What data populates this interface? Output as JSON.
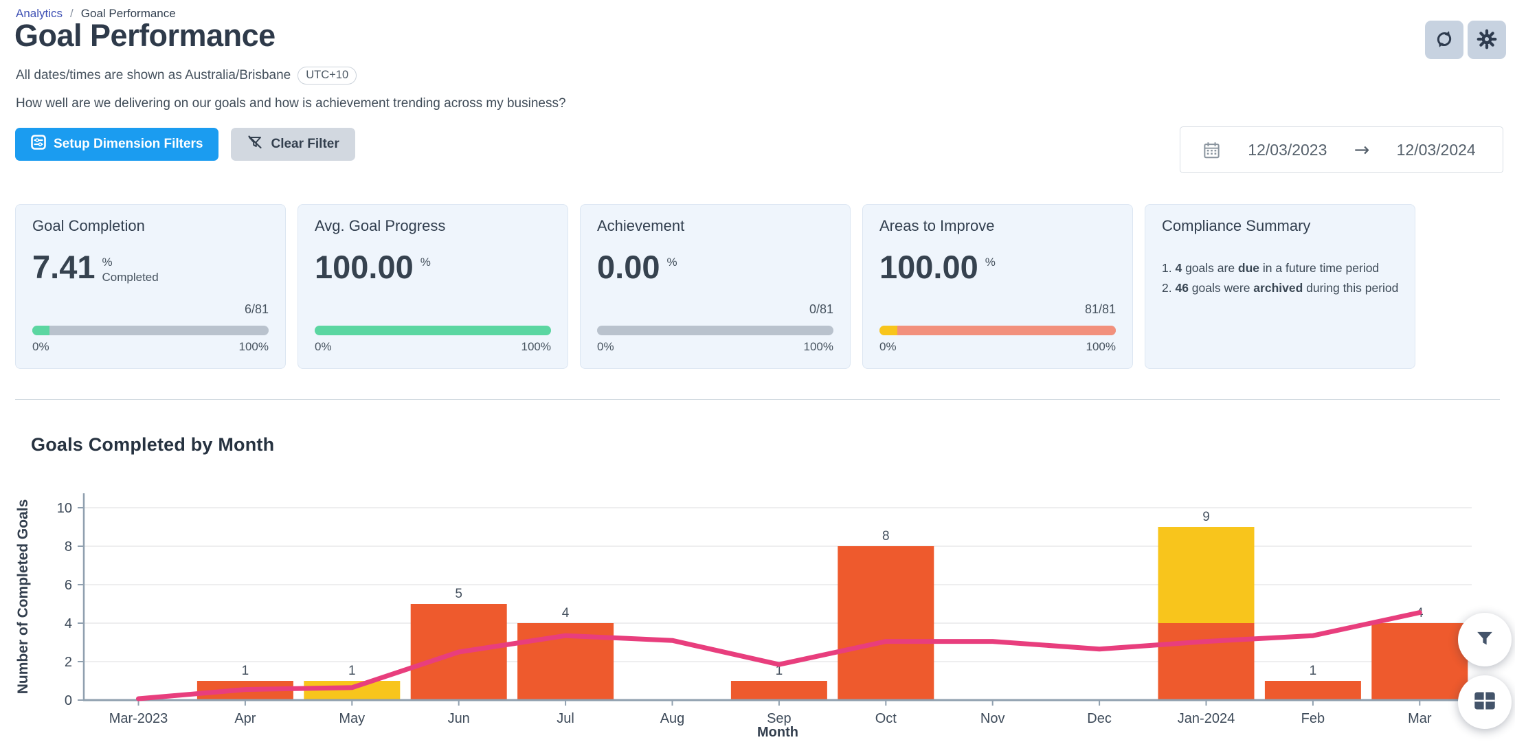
{
  "breadcrumb": {
    "link": "Analytics",
    "separator": "/",
    "current": "Goal Performance"
  },
  "header": {
    "title": "Goal Performance",
    "timezone_note": "All dates/times are shown as Australia/Brisbane",
    "timezone_badge": "UTC+10",
    "description": "How well are we delivering on our goals and how is achievement trending across my business?"
  },
  "toolbar": {
    "setup_filters_label": "Setup Dimension Filters",
    "clear_filter_label": "Clear Filter"
  },
  "top_actions": {
    "refresh_icon": "refresh-icon",
    "settings_icon": "gear-icon"
  },
  "date_range": {
    "icon": "calendar-icon",
    "start": "12/03/2023",
    "arrow": "→",
    "end": "12/03/2024"
  },
  "kpi_cards": [
    {
      "title": "Goal Completion",
      "value": "7.41",
      "unit": "%",
      "unit_sub": "Completed",
      "fraction": "6/81",
      "bar": {
        "track": "#b9c2cd",
        "segments": [
          {
            "color": "#5bd6a1",
            "pct": 7.41
          }
        ]
      },
      "min_label": "0%",
      "max_label": "100%"
    },
    {
      "title": "Avg. Goal Progress",
      "value": "100.00",
      "unit": "%",
      "unit_sub": "",
      "fraction": "",
      "bar": {
        "track": "#b9c2cd",
        "segments": [
          {
            "color": "#5bd6a1",
            "pct": 100
          }
        ]
      },
      "min_label": "0%",
      "max_label": "100%"
    },
    {
      "title": "Achievement",
      "value": "0.00",
      "unit": "%",
      "unit_sub": "",
      "fraction": "0/81",
      "bar": {
        "track": "#b9c2cd",
        "segments": []
      },
      "min_label": "0%",
      "max_label": "100%"
    },
    {
      "title": "Areas to Improve",
      "value": "100.00",
      "unit": "%",
      "unit_sub": "",
      "fraction": "81/81",
      "bar": {
        "track": "#b9c2cd",
        "segments": [
          {
            "color": "#f8c51c",
            "pct": 7.5
          },
          {
            "color": "#f2907c",
            "pct": 92.5
          }
        ]
      },
      "min_label": "0%",
      "max_label": "100%"
    },
    {
      "title": "Compliance Summary",
      "list_items": [
        [
          {
            "t": "1. "
          },
          {
            "t": "4",
            "b": true
          },
          {
            "t": " goals are "
          },
          {
            "t": "due",
            "b": true
          },
          {
            "t": " in a future time period"
          }
        ],
        [
          {
            "t": "2. "
          },
          {
            "t": "46",
            "b": true
          },
          {
            "t": " goals were "
          },
          {
            "t": "archived",
            "b": true
          },
          {
            "t": " during this period"
          }
        ]
      ]
    }
  ],
  "chart_data": {
    "type": "bar",
    "title": "Goals Completed by Month",
    "xlabel": "Month",
    "ylabel": "Number of Completed Goals",
    "ylim": [
      0,
      11
    ],
    "yticks": [
      0,
      2,
      4,
      6,
      8,
      10
    ],
    "grid": true,
    "legend": false,
    "categories": [
      "Mar-2023",
      "Apr",
      "May",
      "Jun",
      "Jul",
      "Aug",
      "Sep",
      "Oct",
      "Nov",
      "Dec",
      "Jan-2024",
      "Feb",
      "Mar"
    ],
    "series": [
      {
        "name": "orange-bars",
        "type": "bar",
        "color": "#ee5a2d",
        "values": [
          0,
          1,
          0,
          5,
          4,
          0,
          1,
          8,
          0,
          0,
          4,
          1,
          4
        ]
      },
      {
        "name": "yellow-bars",
        "type": "bar",
        "color": "#f8c51c",
        "values": [
          0,
          0,
          1,
          0,
          0,
          0,
          0,
          0,
          0,
          0,
          5,
          0,
          0
        ]
      },
      {
        "name": "trend-line",
        "type": "line",
        "color": "#e83e7d",
        "values": [
          0.07,
          0.55,
          0.65,
          2.5,
          3.35,
          3.1,
          1.85,
          3.05,
          3.05,
          2.65,
          3.05,
          3.35,
          4.55
        ]
      }
    ],
    "bar_labels": [
      "",
      "1",
      "1",
      "5",
      "4",
      "",
      "1",
      "8",
      "",
      "",
      "9",
      "1",
      "4"
    ]
  },
  "fabs": {
    "filter_icon": "filter-funnel-icon",
    "table_icon": "table-grid-icon"
  },
  "colors": {
    "accent_blue": "#1b9cf0",
    "link_indigo": "#3e50b4",
    "bar_orange": "#ee5a2d",
    "bar_yellow": "#f8c51c",
    "line_pink": "#e83e7d",
    "progress_green": "#5bd6a1",
    "progress_salmon": "#f2907c",
    "progress_track": "#b9c2cd",
    "card_bg": "#eff5fc",
    "axis": "#90a0af"
  }
}
